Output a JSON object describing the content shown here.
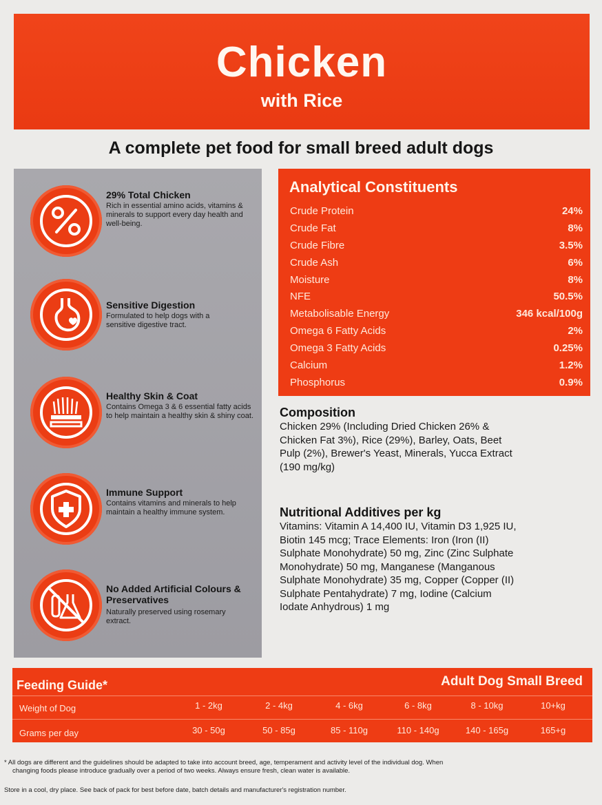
{
  "banner": {
    "title": "Chicken",
    "subtitle": "with Rice"
  },
  "tagline": "A complete pet food for small breed adult dogs",
  "features": [
    {
      "icon": "percent-icon",
      "title": "29% Total Chicken",
      "desc": "Rich in essential amino acids, vitamins & minerals to support every day health and well-being."
    },
    {
      "icon": "stomach-icon",
      "title": "Sensitive Digestion",
      "desc": "Formulated to help dogs with a sensitive digestive tract."
    },
    {
      "icon": "skin-coat-icon",
      "title": "Healthy Skin & Coat",
      "desc": "Contains Omega 3 & 6 essential fatty acids to help maintain a healthy skin & shiny coat."
    },
    {
      "icon": "shield-icon",
      "title": "Immune Support",
      "desc": "Contains vitamins and minerals to help maintain a healthy immune system."
    },
    {
      "icon": "no-chemicals-icon",
      "title": "No Added Artificial Colours & Preservatives",
      "desc": "Naturally preserved using rosemary extract."
    }
  ],
  "analytical": {
    "title": "Analytical Constituents",
    "rows": [
      {
        "name": "Crude Protein",
        "value": "24%"
      },
      {
        "name": "Crude Fat",
        "value": "8%"
      },
      {
        "name": "Crude Fibre",
        "value": "3.5%"
      },
      {
        "name": "Crude Ash",
        "value": "6%"
      },
      {
        "name": "Moisture",
        "value": "8%"
      },
      {
        "name": "NFE",
        "value": "50.5%"
      },
      {
        "name": "Metabolisable Energy",
        "value": "346 kcal/100g"
      },
      {
        "name": "Omega 6 Fatty Acids",
        "value": "2%"
      },
      {
        "name": "Omega 3 Fatty Acids",
        "value": "0.25%"
      },
      {
        "name": "Calcium",
        "value": "1.2%"
      },
      {
        "name": "Phosphorus",
        "value": "0.9%"
      }
    ]
  },
  "composition": {
    "title": "Composition",
    "lines": [
      "Chicken 29% (Including Dried Chicken 26% &",
      "Chicken Fat 3%), Rice (29%), Barley, Oats, Beet",
      "Pulp (2%), Brewer's Yeast, Minerals, Yucca Extract",
      "(190 mg/kg)"
    ]
  },
  "additives": {
    "title": "Nutritional Additives per kg",
    "lines": [
      "Vitamins: Vitamin A 14,400 IU, Vitamin D3 1,925 IU,",
      "Biotin 145 mcg; Trace Elements: Iron (Iron (II)",
      "Sulphate Monohydrate) 50 mg, Zinc (Zinc Sulphate",
      "Monohydrate) 50 mg, Manganese (Manganous",
      "Sulphate Monohydrate) 35 mg, Copper (Copper (II)",
      "Sulphate Pentahydrate) 7 mg, Iodine (Calcium",
      "Iodate Anhydrous) 1 mg"
    ]
  },
  "feeding": {
    "title": "Feeding Guide*",
    "subtitle": "Adult Dog Small Breed",
    "weight_label": "Weight of Dog",
    "grams_label": "Grams per day",
    "weights": [
      "1 - 2kg",
      "2 - 4kg",
      "4 - 6kg",
      "6 - 8kg",
      "8 - 10kg",
      "10+kg"
    ],
    "grams": [
      "30 - 50g",
      "50 - 85g",
      "85 - 110g",
      "110 - 140g",
      "140 - 165g",
      "165+g"
    ]
  },
  "footnotes": [
    "* All dogs are different and the guidelines should be adapted to take into account breed, age, temperament and activity level of the individual dog. When",
    "changing foods please introduce gradually over a period of two weeks. Always ensure fresh, clean water is available.",
    "Store in a cool, dry place. See back of pack for best before date, batch details and manufacturer's registration number."
  ],
  "colors": {
    "accent": "#ee3c14",
    "sidebar": "#a3a2a7",
    "background": "#ecebe9"
  }
}
